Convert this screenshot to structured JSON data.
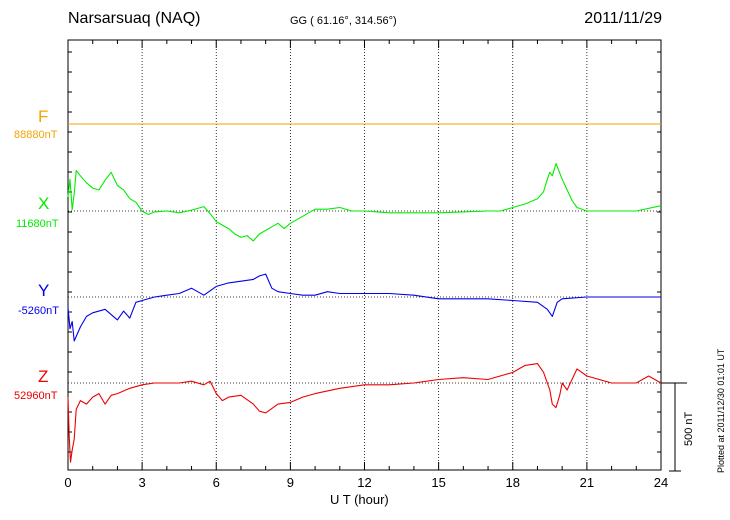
{
  "header": {
    "station": "Narsarsuaq (NAQ)",
    "coords": "GG ( 61.16°, 314.56°)",
    "date": "2011/11/29"
  },
  "footer": {
    "xlabel": "U T (hour)",
    "plotted": "Plotted at 2011/12/30 01:01 UT",
    "scale": "500 nT"
  },
  "chart_data": {
    "type": "line",
    "title": "Narsarsuaq (NAQ)",
    "subtitle": "GG ( 61.16°, 314.56°)",
    "date": "2011/11/29",
    "xlabel": "U T (hour)",
    "xlim": [
      0,
      24
    ],
    "xticks": [
      "0",
      "3",
      "6",
      "9",
      "12",
      "15",
      "18",
      "21",
      "24"
    ],
    "grid": true,
    "scale_bar_nT": 500,
    "series": [
      {
        "name": "F",
        "baseline_label": "88880nT",
        "color": "#f5a300",
        "x": [
          0,
          24
        ],
        "y": [
          0,
          0
        ]
      },
      {
        "name": "X",
        "baseline_label": "11680nT",
        "color": "#00ee00",
        "x": [
          0,
          0.08,
          0.17,
          0.25,
          0.33,
          0.5,
          0.75,
          1,
          1.25,
          1.5,
          1.75,
          2,
          2.25,
          2.5,
          2.75,
          3,
          3.25,
          3.5,
          4,
          4.5,
          5,
          5.5,
          5.75,
          6,
          6.25,
          6.5,
          6.75,
          7,
          7.25,
          7.5,
          7.75,
          8,
          8.25,
          8.5,
          8.75,
          9,
          9.5,
          10,
          10.5,
          11,
          11.5,
          12,
          13,
          14,
          15,
          16,
          17,
          17.5,
          18,
          18.5,
          19,
          19.25,
          19.4,
          19.5,
          19.6,
          19.75,
          20,
          20.2,
          20.4,
          20.6,
          21,
          22,
          23,
          24
        ],
        "y": [
          80,
          180,
          8,
          100,
          230,
          200,
          160,
          130,
          120,
          175,
          220,
          145,
          120,
          70,
          50,
          0,
          -20,
          -5,
          0,
          -10,
          5,
          25,
          -15,
          -60,
          -80,
          -100,
          -130,
          -150,
          -140,
          -170,
          -130,
          -110,
          -90,
          -70,
          -100,
          -70,
          -30,
          10,
          10,
          20,
          0,
          0,
          -10,
          -10,
          -10,
          -5,
          0,
          0,
          20,
          40,
          70,
          110,
          180,
          220,
          200,
          270,
          180,
          120,
          60,
          20,
          0,
          0,
          0,
          30
        ]
      },
      {
        "name": "Y",
        "baseline_label": "-5260nT",
        "color": "#0000ee",
        "x": [
          0,
          0.08,
          0.17,
          0.25,
          0.5,
          0.75,
          1,
          1.5,
          2,
          2.25,
          2.5,
          2.75,
          3,
          3.5,
          4,
          4.5,
          5,
          5.5,
          6,
          6.5,
          7,
          7.5,
          7.75,
          8,
          8.25,
          8.5,
          9,
          9.5,
          10,
          10.5,
          11,
          12,
          13,
          14,
          15,
          16,
          17,
          18,
          19,
          19.4,
          19.6,
          19.8,
          20,
          21,
          22,
          23,
          24
        ],
        "y": [
          -60,
          -180,
          -140,
          -250,
          -170,
          -110,
          -90,
          -70,
          -130,
          -80,
          -120,
          -30,
          -20,
          0,
          10,
          20,
          50,
          10,
          60,
          80,
          90,
          100,
          120,
          130,
          50,
          30,
          20,
          10,
          10,
          30,
          20,
          20,
          20,
          10,
          -10,
          -10,
          -10,
          -20,
          -30,
          -70,
          -110,
          -30,
          -10,
          0,
          0,
          0,
          0
        ]
      },
      {
        "name": "Z",
        "baseline_label": "52960nT",
        "color": "#ee0000",
        "x": [
          0,
          0.05,
          0.1,
          0.17,
          0.25,
          0.33,
          0.5,
          0.75,
          1,
          1.25,
          1.5,
          1.75,
          2,
          2.5,
          3,
          3.5,
          4,
          4.5,
          5,
          5.5,
          5.75,
          6,
          6.25,
          6.5,
          7,
          7.5,
          7.75,
          8,
          8.5,
          9,
          9.5,
          10,
          11,
          12,
          13,
          14,
          15,
          16,
          17,
          18,
          18.5,
          19,
          19.25,
          19.5,
          19.6,
          19.75,
          19.9,
          20,
          20.2,
          20.4,
          20.6,
          21,
          22,
          23,
          23.5,
          24
        ],
        "y": [
          -80,
          -300,
          -450,
          -380,
          -320,
          -150,
          -100,
          -120,
          -80,
          -60,
          -120,
          -70,
          -60,
          -30,
          -10,
          0,
          0,
          0,
          10,
          -10,
          10,
          -60,
          -100,
          -80,
          -70,
          -120,
          -160,
          -170,
          -120,
          -110,
          -80,
          -60,
          -30,
          -10,
          -10,
          0,
          20,
          30,
          20,
          60,
          100,
          110,
          60,
          -40,
          -120,
          -140,
          -70,
          0,
          -40,
          20,
          80,
          40,
          0,
          0,
          40,
          0
        ]
      }
    ]
  }
}
